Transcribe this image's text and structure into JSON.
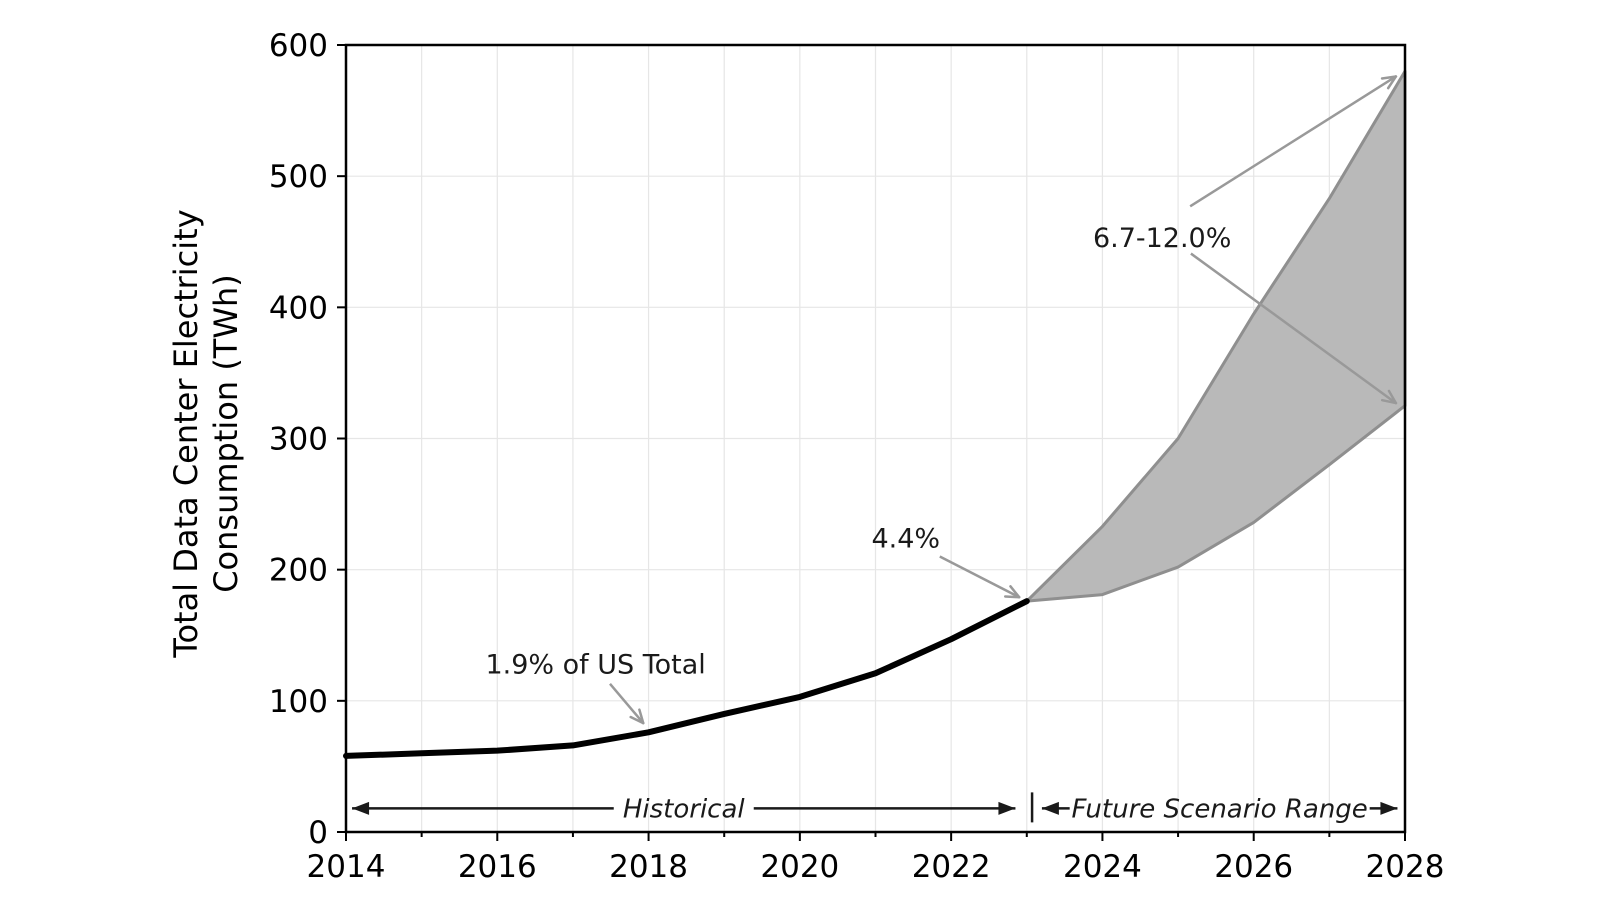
{
  "figure": {
    "background": "#ffffff"
  },
  "chart_data": {
    "type": "area",
    "title": "",
    "xlabel": "",
    "ylabel_lines": [
      "Total Data Center Electricity",
      "Consumption (TWh)"
    ],
    "xlim": [
      2014,
      2028
    ],
    "ylim": [
      0,
      600
    ],
    "x_major_ticks": [
      2014,
      2016,
      2018,
      2020,
      2022,
      2024,
      2026,
      2028
    ],
    "x_minor_ticks": [
      2015,
      2017,
      2019,
      2021,
      2023,
      2025,
      2027
    ],
    "y_ticks": [
      0,
      100,
      200,
      300,
      400,
      500,
      600
    ],
    "grid": true,
    "grid_color": "#e6e6e6",
    "series": [
      {
        "name": "historical",
        "type": "line",
        "color": "#000000",
        "x": [
          2014,
          2015,
          2016,
          2017,
          2018,
          2019,
          2020,
          2021,
          2022,
          2023
        ],
        "y": [
          58,
          60,
          62,
          66,
          76,
          90,
          103,
          121,
          147,
          176
        ]
      },
      {
        "name": "future-scenario-range",
        "type": "band",
        "fill_color": "#b9b9b9",
        "edge_color": "#8f8f8f",
        "x": [
          2023,
          2024,
          2025,
          2026,
          2027,
          2028
        ],
        "upper": [
          176,
          233,
          300,
          395,
          483,
          580
        ],
        "lower": [
          176,
          181,
          202,
          236,
          280,
          325
        ]
      }
    ],
    "annotations": [
      {
        "id": "pct-2018",
        "text": "1.9% of US Total",
        "text_x": 2017.3,
        "text_y": 121,
        "arrows": [
          {
            "x1": 2017.49,
            "y1": 113,
            "x2": 2017.93,
            "y2": 83
          }
        ],
        "arrow_color": "#999999",
        "text_color": "#1a1a1a"
      },
      {
        "id": "pct-2023",
        "text": "4.4%",
        "text_x": 2021.4,
        "text_y": 217,
        "arrows": [
          {
            "x1": 2021.85,
            "y1": 210,
            "x2": 2022.9,
            "y2": 179
          }
        ],
        "arrow_color": "#999999",
        "text_color": "#1a1a1a"
      },
      {
        "id": "pct-2028",
        "text": "6.7-12.0%",
        "text_x": 2024.79,
        "text_y": 446,
        "arrows": [
          {
            "x1": 2025.16,
            "y1": 477,
            "x2": 2027.88,
            "y2": 576
          },
          {
            "x1": 2025.17,
            "y1": 441,
            "x2": 2027.88,
            "y2": 327
          }
        ],
        "arrow_color": "#999999",
        "text_color": "#1a1a1a"
      }
    ],
    "range_markers": {
      "y_value": 18,
      "separator_x": 2023.07,
      "color": "#1a1a1a",
      "historical": {
        "label": "Historical",
        "x_start": 2014.08,
        "x_end": 2022.85
      },
      "future": {
        "label": "Future Scenario Range",
        "x_start": 2023.2,
        "x_end": 2027.9
      }
    }
  }
}
